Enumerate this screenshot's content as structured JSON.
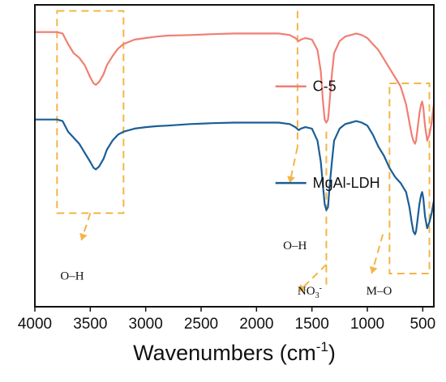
{
  "chart_data": {
    "type": "line",
    "xlabel": "Wavenumbers (cm",
    "xlabel_sup": "-1",
    "xlabel_close": ")",
    "ylabel": "",
    "xlim": [
      4000,
      400
    ],
    "x_reversed": true,
    "y_ticks_shown": false,
    "xticks": [
      4000,
      3500,
      3000,
      2500,
      2000,
      1500,
      1000,
      500
    ],
    "xtick_labels": [
      "4000",
      "3500",
      "3000",
      "2500",
      "2000",
      "1500",
      "1000",
      "500"
    ],
    "ylim": [
      0,
      100
    ],
    "grid": false,
    "legend_placement": "inline, beside each curve",
    "series": [
      {
        "name": "C-5",
        "color": "#f07f74",
        "points": [
          [
            4000,
            91
          ],
          [
            3900,
            91
          ],
          [
            3800,
            91
          ],
          [
            3750,
            90.5
          ],
          [
            3700,
            87
          ],
          [
            3650,
            84
          ],
          [
            3600,
            82.5
          ],
          [
            3550,
            80
          ],
          [
            3500,
            76
          ],
          [
            3470,
            74
          ],
          [
            3450,
            73.5
          ],
          [
            3420,
            74.5
          ],
          [
            3380,
            77
          ],
          [
            3350,
            80
          ],
          [
            3300,
            83
          ],
          [
            3250,
            85.5
          ],
          [
            3200,
            87
          ],
          [
            3100,
            88.5
          ],
          [
            3000,
            89
          ],
          [
            2900,
            89.5
          ],
          [
            2800,
            89.8
          ],
          [
            2600,
            90
          ],
          [
            2400,
            90.3
          ],
          [
            2200,
            90.5
          ],
          [
            2000,
            90.5
          ],
          [
            1800,
            90.5
          ],
          [
            1700,
            90
          ],
          [
            1650,
            89
          ],
          [
            1620,
            88
          ],
          [
            1600,
            88.5
          ],
          [
            1560,
            89
          ],
          [
            1500,
            88.5
          ],
          [
            1450,
            85
          ],
          [
            1420,
            78
          ],
          [
            1400,
            68
          ],
          [
            1385,
            62
          ],
          [
            1370,
            61
          ],
          [
            1355,
            62
          ],
          [
            1340,
            68
          ],
          [
            1320,
            77
          ],
          [
            1300,
            84
          ],
          [
            1250,
            88
          ],
          [
            1200,
            89.5
          ],
          [
            1150,
            90
          ],
          [
            1100,
            90.5
          ],
          [
            1050,
            90
          ],
          [
            1000,
            89
          ],
          [
            950,
            87
          ],
          [
            900,
            85
          ],
          [
            850,
            82
          ],
          [
            800,
            79
          ],
          [
            750,
            76
          ],
          [
            700,
            73
          ],
          [
            650,
            67
          ],
          [
            620,
            61
          ],
          [
            600,
            57
          ],
          [
            585,
            55
          ],
          [
            570,
            54
          ],
          [
            560,
            55
          ],
          [
            550,
            58
          ],
          [
            530,
            64
          ],
          [
            515,
            67
          ],
          [
            505,
            68
          ],
          [
            495,
            66
          ],
          [
            480,
            60
          ],
          [
            460,
            55
          ],
          [
            440,
            57
          ],
          [
            420,
            61
          ],
          [
            410,
            64
          ],
          [
            400,
            67
          ]
        ]
      },
      {
        "name": "MgAl-LDH",
        "color": "#1a5e96",
        "points": [
          [
            4000,
            62
          ],
          [
            3900,
            62
          ],
          [
            3800,
            62
          ],
          [
            3750,
            61.5
          ],
          [
            3700,
            58
          ],
          [
            3650,
            56
          ],
          [
            3600,
            54
          ],
          [
            3550,
            51
          ],
          [
            3500,
            48
          ],
          [
            3470,
            46
          ],
          [
            3450,
            45.5
          ],
          [
            3420,
            46.5
          ],
          [
            3380,
            49
          ],
          [
            3350,
            52
          ],
          [
            3300,
            55
          ],
          [
            3250,
            57
          ],
          [
            3200,
            58
          ],
          [
            3100,
            59
          ],
          [
            3000,
            59.5
          ],
          [
            2900,
            59.8
          ],
          [
            2800,
            60
          ],
          [
            2600,
            60.5
          ],
          [
            2400,
            60.8
          ],
          [
            2200,
            61
          ],
          [
            2000,
            61
          ],
          [
            1800,
            61
          ],
          [
            1700,
            60.5
          ],
          [
            1650,
            59.5
          ],
          [
            1620,
            58.5
          ],
          [
            1600,
            59
          ],
          [
            1560,
            59.5
          ],
          [
            1500,
            59
          ],
          [
            1450,
            55
          ],
          [
            1420,
            48
          ],
          [
            1400,
            40
          ],
          [
            1385,
            34
          ],
          [
            1370,
            32
          ],
          [
            1355,
            33
          ],
          [
            1340,
            40
          ],
          [
            1320,
            48
          ],
          [
            1300,
            55
          ],
          [
            1250,
            59
          ],
          [
            1200,
            60.5
          ],
          [
            1150,
            61
          ],
          [
            1100,
            61.5
          ],
          [
            1050,
            61
          ],
          [
            1000,
            60
          ],
          [
            950,
            57
          ],
          [
            900,
            53
          ],
          [
            850,
            50
          ],
          [
            800,
            46
          ],
          [
            750,
            43
          ],
          [
            700,
            41
          ],
          [
            650,
            38
          ],
          [
            620,
            33
          ],
          [
            600,
            28
          ],
          [
            585,
            25
          ],
          [
            570,
            24
          ],
          [
            560,
            25
          ],
          [
            550,
            28
          ],
          [
            530,
            34
          ],
          [
            515,
            37
          ],
          [
            505,
            38
          ],
          [
            495,
            36
          ],
          [
            480,
            30
          ],
          [
            460,
            26
          ],
          [
            440,
            28
          ],
          [
            420,
            31
          ],
          [
            410,
            33
          ],
          [
            400,
            35
          ]
        ]
      }
    ],
    "legend_entries": [
      {
        "series": "C-5",
        "label": "C-5",
        "color": "#f07f74"
      },
      {
        "series": "MgAl-LDH",
        "label": "MgAl-LDH",
        "color": "#1a5e96"
      }
    ],
    "highlight_color": "#f3b548",
    "annotations": [
      {
        "name": "oh-broad",
        "text": "O–H",
        "x_range": [
          3800,
          3200
        ],
        "target": "dashed box around 3450 band"
      },
      {
        "name": "oh-bend",
        "text": "O–H",
        "x": 1630,
        "target": "dashed line near 1630"
      },
      {
        "name": "nitrate",
        "text": "NO",
        "sub": "3",
        "sup": "-",
        "x": 1360,
        "target": "dashed line near 1360"
      },
      {
        "name": "metal-oxygen",
        "text": "M–O",
        "x_range": [
          800,
          440
        ],
        "target": "dashed box below 800"
      }
    ]
  }
}
